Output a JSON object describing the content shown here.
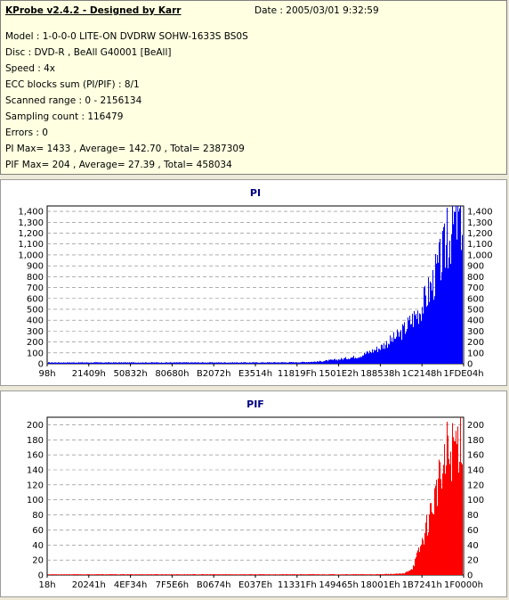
{
  "header": {
    "title": "KProbe v2.4.2 - Designed by Karr",
    "date": "Date : 2005/03/01 9:32:59",
    "lines": [
      "Model : 1-0-0-0 LITE-ON DVDRW SOHW-1633S BS0S",
      "Disc : DVD-R , BeAll G40001 [BeAll]",
      "Speed : 4x",
      "ECC blocks sum (PI/PIF) : 8/1",
      "Scanned range : 0 - 2156134",
      "Sampling count : 116479",
      "Errors : 0",
      "PI Max= 1433 , Average= 142.70 , Total= 2387309",
      "PIF Max= 204 , Average= 27.39 , Total= 458034"
    ]
  },
  "chart_data": [
    {
      "type": "bar",
      "title": "PI",
      "color": "#0000ff",
      "title_color": "#000080",
      "ylim": [
        0,
        1450
      ],
      "yticks": [
        0,
        100,
        200,
        300,
        400,
        500,
        600,
        700,
        800,
        900,
        1000,
        1100,
        1200,
        1300,
        1400
      ],
      "ytick_labels": [
        "0",
        "100",
        "200",
        "300",
        "400",
        "500",
        "600",
        "700",
        "800",
        "900",
        "1,000",
        "1,100",
        "1,200",
        "1,300",
        "1,400"
      ],
      "xtick_labels": [
        "98h",
        "21409h",
        "50832h",
        "80680h",
        "B2072h",
        "E3514h",
        "11819Fh",
        "1501E2h",
        "188538h",
        "1C2148h",
        "1FDE04h"
      ],
      "grid": true,
      "x_fraction": [
        0,
        0.5,
        0.6,
        0.65,
        0.7,
        0.75,
        0.8,
        0.85,
        0.9,
        0.93,
        0.96,
        0.98,
        1.0
      ],
      "y_envelope": [
        12,
        12,
        14,
        20,
        40,
        70,
        150,
        280,
        520,
        780,
        1100,
        1330,
        1380
      ],
      "max": 1433
    },
    {
      "type": "bar",
      "title": "PIF",
      "color": "#ff0000",
      "title_color": "#000080",
      "ylim": [
        0,
        210
      ],
      "yticks": [
        0,
        20,
        40,
        60,
        80,
        100,
        120,
        140,
        160,
        180,
        200
      ],
      "ytick_labels": [
        "0",
        "20",
        "40",
        "60",
        "80",
        "100",
        "120",
        "140",
        "160",
        "180",
        "200"
      ],
      "xtick_labels": [
        "18h",
        "20241h",
        "4EF34h",
        "7F5E6h",
        "B0674h",
        "E037Eh",
        "11331Fh",
        "149465h",
        "18001Eh",
        "1B7241h",
        "1F0000h"
      ],
      "grid": true,
      "x_fraction": [
        0,
        0.8,
        0.86,
        0.88,
        0.9,
        0.92,
        0.94,
        0.96,
        0.98,
        1.0
      ],
      "y_envelope": [
        1,
        1,
        2,
        10,
        40,
        80,
        120,
        150,
        180,
        195
      ],
      "max": 204
    }
  ]
}
